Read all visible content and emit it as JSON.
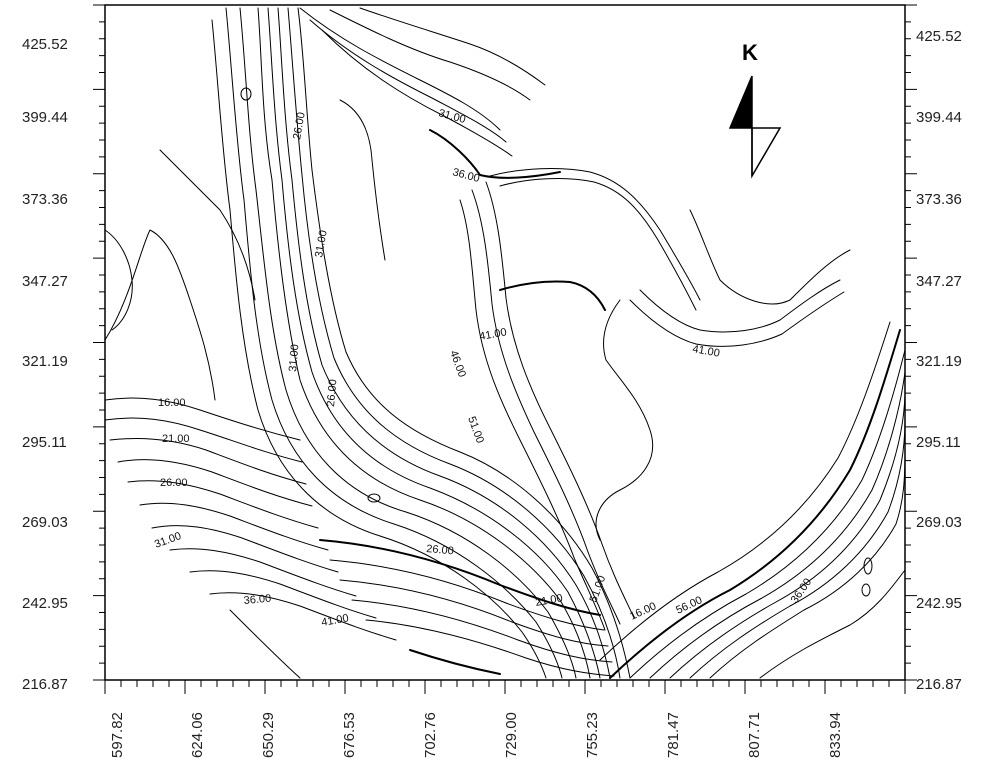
{
  "map": {
    "y_ticks": [
      "425.52",
      "399.44",
      "373.36",
      "347.27",
      "321.19",
      "295.11",
      "269.03",
      "242.95",
      "216.87"
    ],
    "x_ticks": [
      "597.82",
      "624.06",
      "650.29",
      "676.53",
      "702.76",
      "729.00",
      "755.23",
      "781.47",
      "807.71",
      "833.94"
    ],
    "north_label": "K",
    "colors": {
      "line": "#000000",
      "background": "#ffffff"
    },
    "contour_labels": [
      {
        "id": "c1",
        "text": "26.00"
      },
      {
        "id": "c2",
        "text": "31.00"
      },
      {
        "id": "c3",
        "text": "36.00"
      },
      {
        "id": "c4",
        "text": "31.00"
      },
      {
        "id": "c5",
        "text": "31.00"
      },
      {
        "id": "c6",
        "text": "41.00"
      },
      {
        "id": "c7",
        "text": "41.00"
      },
      {
        "id": "c8",
        "text": "46.00"
      },
      {
        "id": "c9",
        "text": "51.00"
      },
      {
        "id": "c10",
        "text": "26.00"
      },
      {
        "id": "c11",
        "text": "16.00"
      },
      {
        "id": "c12",
        "text": "21.00"
      },
      {
        "id": "c13",
        "text": "26.00"
      },
      {
        "id": "c14",
        "text": "31.00"
      },
      {
        "id": "c15",
        "text": "26.00"
      },
      {
        "id": "c16",
        "text": "36.00"
      },
      {
        "id": "c17",
        "text": "41.00"
      },
      {
        "id": "c18",
        "text": "16.00"
      },
      {
        "id": "c19",
        "text": "36.00"
      },
      {
        "id": "c20",
        "text": "51.00"
      },
      {
        "id": "c21",
        "text": "56.00"
      },
      {
        "id": "c22",
        "text": "21.00"
      }
    ]
  }
}
